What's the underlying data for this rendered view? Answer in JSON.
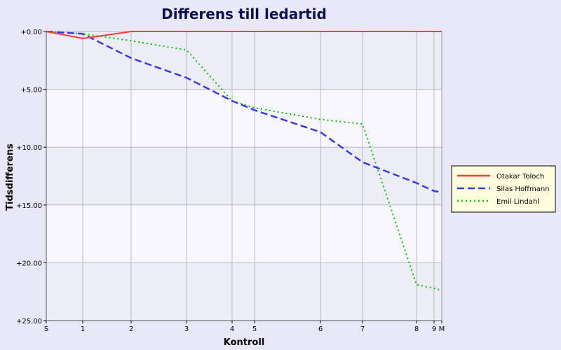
{
  "chart_data": {
    "type": "line",
    "title": "Differens till ledartid",
    "xlabel": "Kontroll",
    "ylabel": "Tidsdifferens",
    "x_ticks": [
      {
        "label": "S",
        "pos": 0
      },
      {
        "label": "1",
        "pos": 1
      },
      {
        "label": "2",
        "pos": 2
      },
      {
        "label": "3",
        "pos": 3
      },
      {
        "label": "4",
        "pos": 4
      },
      {
        "label": "5",
        "pos": 5
      },
      {
        "label": "6",
        "pos": 6
      },
      {
        "label": "7",
        "pos": 7
      },
      {
        "label": "8",
        "pos": 8
      },
      {
        "label": "9",
        "pos": 9
      },
      {
        "label": "M",
        "pos": 10
      }
    ],
    "y_ticks": [
      "+0.00",
      "+5.00",
      "+10.00",
      "+15.00",
      "+20.00",
      "+25.00"
    ],
    "ylim": [
      0,
      25
    ],
    "y_inverted": true,
    "grid": true,
    "legend_position": "right",
    "series": [
      {
        "name": "Otakar Toloch",
        "color": "#ff3b3b",
        "style": "solid",
        "values": [
          0,
          0.6,
          0,
          0,
          0,
          0,
          0,
          0,
          0,
          0,
          0
        ]
      },
      {
        "name": "Silas Hoffmann",
        "color": "#3a3ae6",
        "style": "dashed",
        "values": [
          0,
          0.2,
          2.3,
          4.0,
          6.0,
          6.8,
          8.7,
          11.3,
          13.1,
          13.8,
          13.9
        ]
      },
      {
        "name": "Emil Lindahl",
        "color": "#00c000",
        "style": "dotted",
        "values": [
          0,
          0.2,
          0.8,
          1.6,
          6.0,
          6.6,
          7.6,
          8.0,
          21.9,
          22.2,
          22.4
        ]
      }
    ]
  }
}
